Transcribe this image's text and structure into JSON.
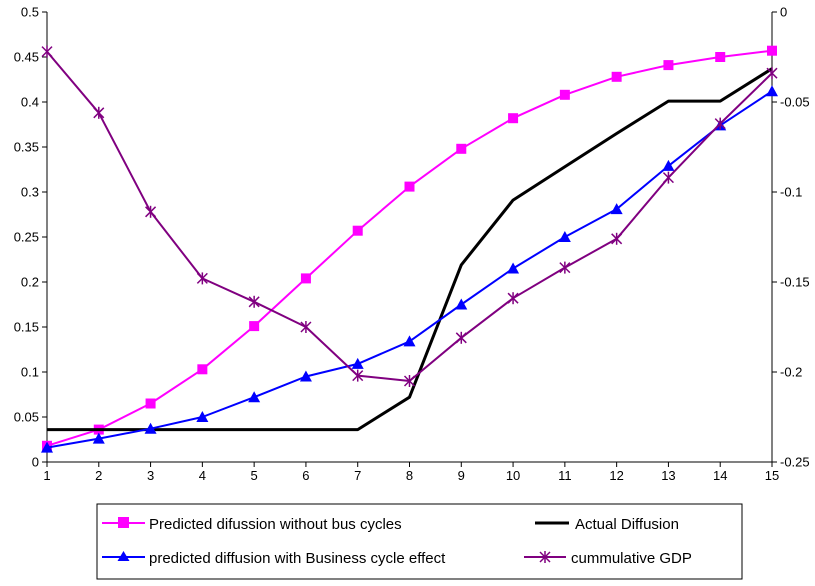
{
  "chart_data": {
    "type": "line",
    "title": "",
    "xlabel": "",
    "ylabel": "",
    "y2label": "",
    "x": [
      1,
      2,
      3,
      4,
      5,
      6,
      7,
      8,
      9,
      10,
      11,
      12,
      13,
      14,
      15
    ],
    "ylim": [
      0,
      0.5
    ],
    "y2lim": [
      -0.25,
      0
    ],
    "y_ticks": [
      "0",
      "0.05",
      "0.1",
      "0.15",
      "0.2",
      "0.25",
      "0.3",
      "0.35",
      "0.4",
      "0.45",
      "0.5"
    ],
    "y2_ticks": [
      "-0.25",
      "-0.2",
      "-0.15",
      "-0.1",
      "-0.05",
      "0"
    ],
    "x_ticks": [
      "1",
      "2",
      "3",
      "4",
      "5",
      "6",
      "7",
      "8",
      "9",
      "10",
      "11",
      "12",
      "13",
      "14",
      "15"
    ],
    "grid": false,
    "legend_position": "bottom",
    "series": [
      {
        "name": "Predicted difussion without bus cycles",
        "axis": "left",
        "color": "#ff00ff",
        "marker": "square",
        "values": [
          0.018,
          0.036,
          0.065,
          0.103,
          0.151,
          0.204,
          0.257,
          0.306,
          0.348,
          0.382,
          0.408,
          0.428,
          0.441,
          0.45,
          0.457
        ]
      },
      {
        "name": "Actual Diffusion",
        "axis": "left",
        "color": "#000000",
        "marker": "none",
        "values": [
          0.036,
          0.036,
          0.036,
          0.036,
          0.036,
          0.036,
          0.036,
          0.072,
          0.219,
          0.291,
          0.328,
          0.365,
          0.401,
          0.401,
          0.437
        ]
      },
      {
        "name": "predicted diffusion with Business cycle effect",
        "axis": "left",
        "color": "#0000ff",
        "marker": "triangle",
        "values": [
          0.016,
          0.026,
          0.037,
          0.05,
          0.072,
          0.095,
          0.109,
          0.134,
          0.175,
          0.215,
          0.25,
          0.281,
          0.329,
          0.374,
          0.412
        ]
      },
      {
        "name": "cummulative GDP",
        "axis": "right",
        "color": "#800080",
        "marker": "star",
        "values": [
          -0.022,
          -0.056,
          -0.111,
          -0.148,
          -0.161,
          -0.175,
          -0.202,
          -0.205,
          -0.181,
          -0.159,
          -0.142,
          -0.126,
          -0.092,
          -0.062,
          -0.034
        ]
      }
    ]
  }
}
